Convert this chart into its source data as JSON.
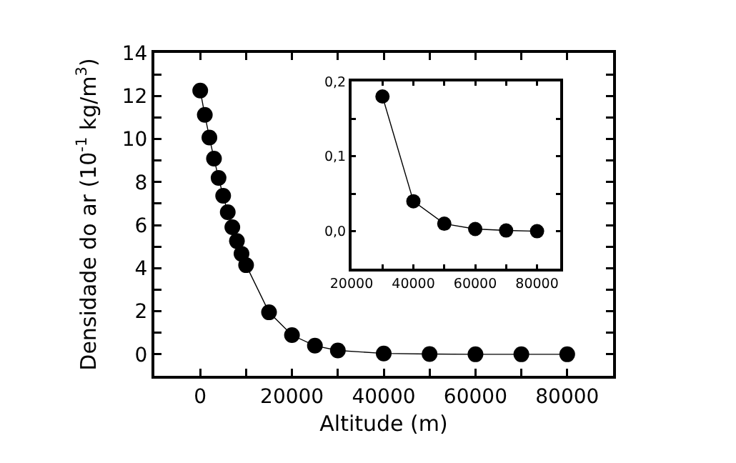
{
  "chart_data": [
    {
      "type": "line",
      "xlabel": "Altitude (m)",
      "ylabel": "Densidade do ar (10$^{-1}$ kg/m$^{3}$)",
      "marker": "circle",
      "line_style": "solid",
      "x": [
        0,
        1000,
        2000,
        3000,
        4000,
        5000,
        6000,
        7000,
        8000,
        9000,
        10000,
        15000,
        20000,
        25000,
        30000,
        40000,
        50000,
        60000,
        70000,
        80000
      ],
      "series": [
        {
          "color": "#000000",
          "values": [
            12.25,
            11.12,
            10.07,
            9.09,
            8.19,
            7.36,
            6.6,
            5.9,
            5.26,
            4.67,
            4.14,
            1.95,
            0.89,
            0.4,
            0.18,
            0.04,
            0.01,
            0.0,
            0.0,
            0.0
          ]
        }
      ],
      "xlim": [
        -10000,
        90000
      ],
      "xticks": [
        0,
        {
          "value": 10000,
          "label": null
        },
        20000,
        {
          "value": 30000,
          "label": null
        },
        40000,
        {
          "value": 50000,
          "label": null
        },
        60000,
        {
          "value": 70000,
          "label": null
        },
        80000
      ],
      "ylim": [
        -1,
        14
      ],
      "yticks": [
        {
          "value": -1,
          "label": null
        },
        0,
        {
          "value": 1,
          "label": null
        },
        2,
        {
          "value": 3,
          "label": null
        },
        4,
        {
          "value": 5,
          "label": null
        },
        6,
        {
          "value": 7,
          "label": null
        },
        8,
        {
          "value": 9,
          "label": null
        },
        10,
        {
          "value": 11,
          "label": null
        },
        12,
        {
          "value": 13,
          "label": null
        },
        14
      ]
    },
    {
      "type": "line",
      "marker": "circle",
      "line_style": "solid",
      "x": [
        30000,
        40000,
        50000,
        60000,
        70000,
        80000
      ],
      "series": [
        {
          "color": "#000000",
          "values": [
            0.18,
            0.04,
            0.01,
            0.003,
            0.001,
            0.0
          ]
        }
      ],
      "xlim": [
        20000,
        87500
      ],
      "xticks": [
        20000,
        {
          "value": 30000,
          "label": null
        },
        40000,
        {
          "value": 50000,
          "label": null
        },
        60000,
        {
          "value": 70000,
          "label": null
        },
        80000
      ],
      "ylim": [
        -0.05,
        0.2
      ],
      "yticks": [
        {
          "value": 0,
          "label": "0,0"
        },
        {
          "value": 0.05,
          "label": null
        },
        {
          "value": 0.1,
          "label": "0,1"
        },
        {
          "value": 0.15,
          "label": null
        },
        {
          "value": 0.2,
          "label": "0,2"
        }
      ]
    }
  ]
}
